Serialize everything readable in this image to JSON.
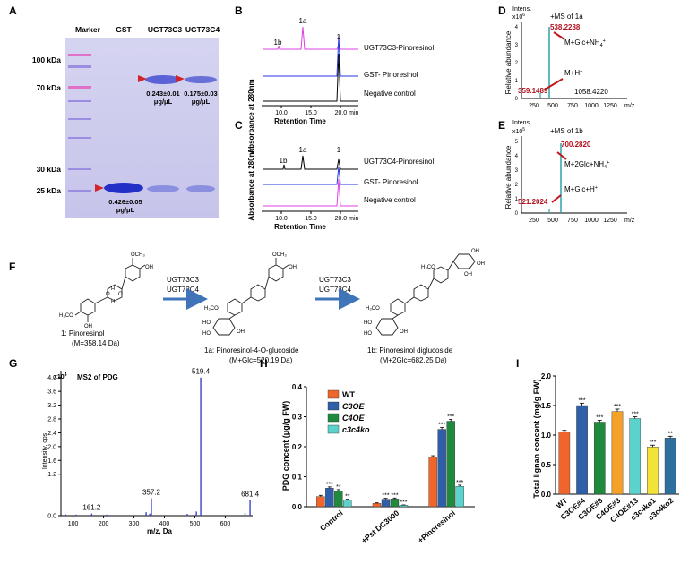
{
  "panels": {
    "A": {
      "letter": "A",
      "lanes": [
        "Marker",
        "GST",
        "UGT73C3",
        "UGT73C4"
      ],
      "markers": [
        "100 kDa",
        "70 kDa",
        "30 kDa",
        "25 kDa"
      ],
      "annotations": [
        {
          "lane": "GST",
          "line1": "0.426±0.05",
          "line2": "μg/μL"
        },
        {
          "lane": "UGT73C3",
          "line1": "0.243±0.01",
          "line2": "μg/μL"
        },
        {
          "lane": "UGT73C4",
          "line1": "0.175±0.03",
          "line2": "μg/μL"
        }
      ]
    },
    "B": {
      "letter": "B",
      "ylabel": "Absorbance at 280nm",
      "xlabel": "Retention Time",
      "ticks": [
        "10.0",
        "15.0",
        "20.0 min"
      ],
      "traces": [
        "UGT73C3-Pinoresinol",
        "GST- Pinoresinol",
        "Negative  control"
      ],
      "peaks": [
        "1b",
        "1a",
        "1"
      ]
    },
    "C": {
      "letter": "C",
      "ylabel": "Absorbance at 280nm",
      "xlabel": "Retention Time",
      "ticks": [
        "10.0",
        "15.0",
        "20.0 min"
      ],
      "traces": [
        "UGT73C4-Pinoresinol",
        "GST- Pinoresinol",
        "Negative  control"
      ],
      "peaks": [
        "1b",
        "1a",
        "1"
      ]
    },
    "D": {
      "letter": "D",
      "title": "+MS of 1a",
      "intens": "Intens.",
      "exp": "x10",
      "exp_sup": "6",
      "ylabel": "Relative abundance",
      "yticks": [
        "0",
        "1",
        "2",
        "3",
        "4"
      ],
      "xticks": [
        "250",
        "500",
        "750",
        "1000",
        "1250"
      ],
      "xunit": "m/z",
      "peak_main": "538.2288",
      "peak_main_label": "M+Glc+NH",
      "peak_main_sub": "4",
      "peak_main_sup": "+",
      "peak_minor": "359.1489",
      "peak_minor_label": "M+H",
      "peak_minor_sup": "+",
      "peak_other": "1058.4220"
    },
    "E": {
      "letter": "E",
      "title": "+MS of 1b",
      "intens": "Intens.",
      "exp": "x10",
      "exp_sup": "5",
      "ylabel": "Relative abundance",
      "yticks": [
        "0",
        "1",
        "2",
        "3",
        "4",
        "5"
      ],
      "xticks": [
        "250",
        "500",
        "750",
        "1000",
        "1250"
      ],
      "xunit": "m/z",
      "peak_main": "700.2820",
      "peak_main_label": "M+2Glc+NH",
      "peak_main_sub": "4",
      "peak_main_sup": "+",
      "peak_minor": "521.2024",
      "peak_minor_label": "M+Glc+H",
      "peak_minor_sup": "+"
    },
    "F": {
      "letter": "F",
      "arrow1_line1": "UGT73C3",
      "arrow1_line2": "UGT73C4",
      "arrow2_line1": "UGT73C3",
      "arrow2_line2": "UGT73C4",
      "compounds": [
        {
          "name": "1: Pinoresinol",
          "mass": "(M=358.14 Da)"
        },
        {
          "name": "1a: Pinoresinol-4-O-glucoside",
          "mass": "(M+Glc=520.19 Da)"
        },
        {
          "name": "1b: Pinoresinol diglucoside",
          "mass": "(M+2Glc=682.25 Da)"
        }
      ],
      "atoms": {
        "oh": "OH",
        "o": "O",
        "h": "H",
        "h3co": "H₃CO",
        "och3": "OCH₃",
        "ho": "HO"
      }
    },
    "G": {
      "letter": "G"
    },
    "H": {
      "letter": "H"
    },
    "I": {
      "letter": "I"
    }
  },
  "chart_data": [
    {
      "panel": "G",
      "type": "bar",
      "title": "MS2 of PDG",
      "xlabel": "m/z, Da",
      "ylabel": "Intensity, cps",
      "y_multiplier": "x10",
      "y_multiplier_sup": "4",
      "xlim": [
        60,
        690
      ],
      "ylim": [
        0,
        4.2
      ],
      "xticks": [
        100,
        200,
        300,
        400,
        500,
        600
      ],
      "yticks": [
        "0.0",
        "1.2",
        "1.6",
        "2.0",
        "2.4",
        "2.8",
        "3.2",
        "3.6",
        "4.0"
      ],
      "ytick_values": [
        0.0,
        1.2,
        1.6,
        2.0,
        2.4,
        2.8,
        3.2,
        3.6,
        4.0
      ],
      "peaks": [
        {
          "mz": 161.2,
          "intensity": 0.06,
          "label": "161.2"
        },
        {
          "mz": 357.2,
          "intensity": 0.5,
          "label": "357.2"
        },
        {
          "mz": 519.4,
          "intensity": 4.0,
          "label": "519.4"
        },
        {
          "mz": 681.4,
          "intensity": 0.45,
          "label": "681.4"
        },
        {
          "mz": 75,
          "intensity": 0.04
        },
        {
          "mz": 110,
          "intensity": 0.03
        },
        {
          "mz": 210,
          "intensity": 0.03
        },
        {
          "mz": 340,
          "intensity": 0.1
        },
        {
          "mz": 352,
          "intensity": 0.06
        },
        {
          "mz": 475,
          "intensity": 0.05
        },
        {
          "mz": 505,
          "intensity": 0.12
        },
        {
          "mz": 665,
          "intensity": 0.08
        }
      ]
    },
    {
      "panel": "H",
      "type": "bar",
      "ylabel": "PDG concent (μg/g FW)",
      "ylim": [
        0,
        0.4
      ],
      "yticks": [
        "0.0",
        "0.1",
        "0.2",
        "0.3",
        "0.4"
      ],
      "ytick_values": [
        0.0,
        0.1,
        0.2,
        0.3,
        0.4
      ],
      "categories": [
        "Control",
        "+Pst DC3000",
        "+Pinoresinol"
      ],
      "series": [
        {
          "name": "WT",
          "color": "#f0652c",
          "values": [
            0.034,
            0.011,
            0.165
          ],
          "errors": [
            0.004,
            0.002,
            0.005
          ],
          "stars": [
            "",
            "",
            ""
          ]
        },
        {
          "name": "C3OE",
          "color": "#2e5fa8",
          "values": [
            0.062,
            0.025,
            0.258
          ],
          "errors": [
            0.004,
            0.003,
            0.006
          ],
          "stars": [
            "***",
            "***",
            "***"
          ]
        },
        {
          "name": "C4OE",
          "color": "#1f8a3e",
          "values": [
            0.053,
            0.026,
            0.285
          ],
          "errors": [
            0.004,
            0.003,
            0.006
          ],
          "stars": [
            "**",
            "***",
            "***"
          ]
        },
        {
          "name": "c3c4ko",
          "color": "#5bd3cc",
          "values": [
            0.022,
            0.005,
            0.068
          ],
          "errors": [
            0.003,
            0.001,
            0.004
          ],
          "stars": [
            "**",
            "***",
            "***"
          ]
        }
      ]
    },
    {
      "panel": "I",
      "type": "bar",
      "ylabel": "Total lignan concent (mg/g FW)",
      "ylim": [
        0,
        2.0
      ],
      "yticks": [
        "0.0",
        "0.5",
        "1.0",
        "1.5",
        "2.0"
      ],
      "ytick_values": [
        0.0,
        0.5,
        1.0,
        1.5,
        2.0
      ],
      "categories": [
        "WT",
        "C3OE#4",
        "C3OE#9",
        "C4OE#3",
        "C4OE#13",
        "c3c4ko1",
        "c3c4ko2"
      ],
      "values": [
        1.05,
        1.5,
        1.22,
        1.4,
        1.28,
        0.8,
        0.95
      ],
      "errors": [
        0.03,
        0.04,
        0.03,
        0.04,
        0.03,
        0.03,
        0.03
      ],
      "stars": [
        "",
        "***",
        "***",
        "***",
        "***",
        "***",
        "**"
      ],
      "colors": [
        "#f0652c",
        "#2e5fa8",
        "#1f8a3e",
        "#f4a127",
        "#5bd3cc",
        "#f2e33a",
        "#2f6f9e"
      ]
    }
  ]
}
